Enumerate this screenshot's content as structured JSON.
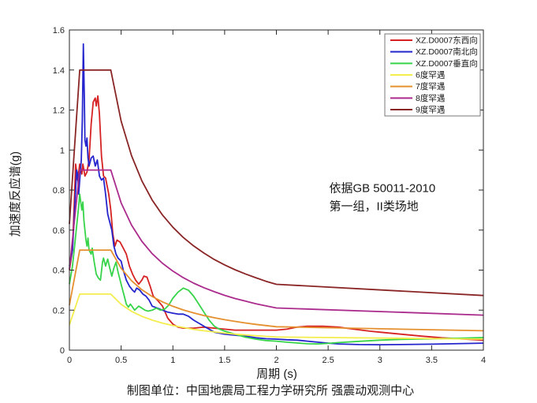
{
  "figure": {
    "background": "#ffffff",
    "axis_color": "#262626",
    "text_color": "#1a1a1a",
    "legend_border_color": "#777777"
  },
  "caption": "制图单位：中国地震局工程力学研究所 强震动观测中心",
  "chart_data": {
    "type": "line",
    "title": "",
    "xlabel": "周期 (s)",
    "ylabel": "加速度反应谱(g)",
    "xlim": [
      0,
      4
    ],
    "ylim": [
      0,
      1.6
    ],
    "grid": false,
    "legend_position": "top-right",
    "xtick_values": [
      0,
      0.5,
      1,
      1.5,
      2,
      2.5,
      3,
      3.5,
      4
    ],
    "xtick_labels": [
      "0",
      "0.5",
      "1",
      "1.5",
      "2",
      "2.5",
      "3",
      "3.5",
      "4"
    ],
    "ytick_values": [
      0,
      0.2,
      0.4,
      0.6,
      0.8,
      1,
      1.2,
      1.4,
      1.6
    ],
    "ytick_labels": [
      "0",
      "0.2",
      "0.4",
      "0.6",
      "0.8",
      "1",
      "1.2",
      "1.4",
      "1.6"
    ],
    "annotation": {
      "lines": [
        "依据GB 50011-2010",
        "第一组，II类场地"
      ],
      "x": 2.51,
      "y_lines": [
        0.79,
        0.7
      ]
    },
    "series": [
      {
        "id": "ew",
        "name": "XZ.D0007东西向",
        "color": "#d62222",
        "points": [
          [
            0,
            0.4
          ],
          [
            0.03,
            0.5
          ],
          [
            0.05,
            0.78
          ],
          [
            0.06,
            0.93
          ],
          [
            0.08,
            0.85
          ],
          [
            0.1,
            0.93
          ],
          [
            0.12,
            0.88
          ],
          [
            0.13,
            0.93
          ],
          [
            0.15,
            0.87
          ],
          [
            0.17,
            0.89
          ],
          [
            0.19,
            0.95
          ],
          [
            0.21,
            1.13
          ],
          [
            0.23,
            1.24
          ],
          [
            0.25,
            1.26
          ],
          [
            0.26,
            1.22
          ],
          [
            0.275,
            1.27
          ],
          [
            0.29,
            1.18
          ],
          [
            0.31,
            0.97
          ],
          [
            0.33,
            0.87
          ],
          [
            0.35,
            0.86
          ],
          [
            0.38,
            0.78
          ],
          [
            0.4,
            0.7
          ],
          [
            0.42,
            0.58
          ],
          [
            0.44,
            0.52
          ],
          [
            0.46,
            0.55
          ],
          [
            0.49,
            0.54
          ],
          [
            0.52,
            0.51
          ],
          [
            0.55,
            0.48
          ],
          [
            0.58,
            0.42
          ],
          [
            0.61,
            0.38
          ],
          [
            0.64,
            0.35
          ],
          [
            0.67,
            0.33
          ],
          [
            0.7,
            0.35
          ],
          [
            0.72,
            0.37
          ],
          [
            0.75,
            0.365
          ],
          [
            0.78,
            0.32
          ],
          [
            0.81,
            0.27
          ],
          [
            0.85,
            0.25
          ],
          [
            0.9,
            0.22
          ],
          [
            0.95,
            0.16
          ],
          [
            1.0,
            0.13
          ],
          [
            1.05,
            0.115
          ],
          [
            1.1,
            0.11
          ],
          [
            1.2,
            0.11
          ],
          [
            1.3,
            0.115
          ],
          [
            1.4,
            0.11
          ],
          [
            1.5,
            0.105
          ],
          [
            1.6,
            0.1
          ],
          [
            1.7,
            0.1
          ],
          [
            1.8,
            0.1
          ],
          [
            1.9,
            0.1
          ],
          [
            2.0,
            0.1
          ],
          [
            2.1,
            0.105
          ],
          [
            2.2,
            0.115
          ],
          [
            2.3,
            0.12
          ],
          [
            2.45,
            0.12
          ],
          [
            2.6,
            0.115
          ],
          [
            2.75,
            0.105
          ],
          [
            2.9,
            0.095
          ],
          [
            3.0,
            0.09
          ],
          [
            3.2,
            0.08
          ],
          [
            3.4,
            0.07
          ],
          [
            3.6,
            0.062
          ],
          [
            3.8,
            0.056
          ],
          [
            4.0,
            0.05
          ]
        ]
      },
      {
        "id": "ns",
        "name": "XZ.D0007南北向",
        "color": "#2525cd",
        "points": [
          [
            0,
            0.42
          ],
          [
            0.03,
            0.5
          ],
          [
            0.05,
            0.7
          ],
          [
            0.07,
            0.9
          ],
          [
            0.08,
            0.88
          ],
          [
            0.09,
            0.78
          ],
          [
            0.1,
            0.85
          ],
          [
            0.115,
            0.95
          ],
          [
            0.125,
            1.15
          ],
          [
            0.135,
            1.53
          ],
          [
            0.145,
            1.25
          ],
          [
            0.15,
            1.05
          ],
          [
            0.16,
            1.02
          ],
          [
            0.17,
            1.06
          ],
          [
            0.18,
            0.96
          ],
          [
            0.19,
            0.92
          ],
          [
            0.21,
            0.96
          ],
          [
            0.23,
            0.97
          ],
          [
            0.25,
            0.92
          ],
          [
            0.27,
            0.95
          ],
          [
            0.29,
            0.87
          ],
          [
            0.31,
            0.85
          ],
          [
            0.33,
            0.86
          ],
          [
            0.35,
            0.78
          ],
          [
            0.37,
            0.68
          ],
          [
            0.39,
            0.64
          ],
          [
            0.41,
            0.6
          ],
          [
            0.43,
            0.52
          ],
          [
            0.45,
            0.48
          ],
          [
            0.47,
            0.46
          ],
          [
            0.5,
            0.445
          ],
          [
            0.52,
            0.4
          ],
          [
            0.55,
            0.35
          ],
          [
            0.58,
            0.32
          ],
          [
            0.61,
            0.3
          ],
          [
            0.63,
            0.29
          ],
          [
            0.65,
            0.31
          ],
          [
            0.68,
            0.3
          ],
          [
            0.71,
            0.28
          ],
          [
            0.74,
            0.27
          ],
          [
            0.77,
            0.25
          ],
          [
            0.8,
            0.22
          ],
          [
            0.85,
            0.21
          ],
          [
            0.9,
            0.2
          ],
          [
            0.95,
            0.19
          ],
          [
            1.0,
            0.185
          ],
          [
            1.05,
            0.18
          ],
          [
            1.1,
            0.18
          ],
          [
            1.15,
            0.17
          ],
          [
            1.2,
            0.15
          ],
          [
            1.3,
            0.12
          ],
          [
            1.4,
            0.09
          ],
          [
            1.5,
            0.08
          ],
          [
            1.6,
            0.075
          ],
          [
            1.7,
            0.07
          ],
          [
            1.8,
            0.062
          ],
          [
            1.9,
            0.057
          ],
          [
            2.0,
            0.055
          ],
          [
            2.1,
            0.052
          ],
          [
            2.2,
            0.05
          ],
          [
            2.3,
            0.045
          ],
          [
            2.4,
            0.04
          ],
          [
            2.5,
            0.035
          ],
          [
            2.6,
            0.031
          ],
          [
            2.8,
            0.028
          ],
          [
            3.0,
            0.027
          ],
          [
            3.2,
            0.028
          ],
          [
            3.5,
            0.03
          ],
          [
            3.8,
            0.033
          ],
          [
            4.0,
            0.035
          ]
        ]
      },
      {
        "id": "ud",
        "name": "XZ.D0007垂直向",
        "color": "#37d44a",
        "points": [
          [
            0,
            0.33
          ],
          [
            0.03,
            0.42
          ],
          [
            0.05,
            0.52
          ],
          [
            0.07,
            0.62
          ],
          [
            0.09,
            0.72
          ],
          [
            0.1,
            0.78
          ],
          [
            0.11,
            0.74
          ],
          [
            0.12,
            0.7
          ],
          [
            0.13,
            0.74
          ],
          [
            0.14,
            0.65
          ],
          [
            0.15,
            0.6
          ],
          [
            0.16,
            0.55
          ],
          [
            0.17,
            0.52
          ],
          [
            0.18,
            0.56
          ],
          [
            0.19,
            0.5
          ],
          [
            0.21,
            0.48
          ],
          [
            0.22,
            0.51
          ],
          [
            0.24,
            0.44
          ],
          [
            0.26,
            0.38
          ],
          [
            0.28,
            0.36
          ],
          [
            0.3,
            0.35
          ],
          [
            0.32,
            0.44
          ],
          [
            0.33,
            0.46
          ],
          [
            0.35,
            0.42
          ],
          [
            0.37,
            0.455
          ],
          [
            0.39,
            0.41
          ],
          [
            0.41,
            0.37
          ],
          [
            0.43,
            0.41
          ],
          [
            0.45,
            0.44
          ],
          [
            0.47,
            0.39
          ],
          [
            0.49,
            0.35
          ],
          [
            0.51,
            0.31
          ],
          [
            0.53,
            0.27
          ],
          [
            0.55,
            0.23
          ],
          [
            0.57,
            0.215
          ],
          [
            0.59,
            0.23
          ],
          [
            0.61,
            0.215
          ],
          [
            0.63,
            0.2
          ],
          [
            0.65,
            0.21
          ],
          [
            0.67,
            0.22
          ],
          [
            0.7,
            0.21
          ],
          [
            0.73,
            0.2
          ],
          [
            0.76,
            0.195
          ],
          [
            0.8,
            0.2
          ],
          [
            0.84,
            0.21
          ],
          [
            0.88,
            0.2
          ],
          [
            0.92,
            0.205
          ],
          [
            0.96,
            0.225
          ],
          [
            1.0,
            0.26
          ],
          [
            1.05,
            0.29
          ],
          [
            1.1,
            0.31
          ],
          [
            1.15,
            0.3
          ],
          [
            1.2,
            0.27
          ],
          [
            1.25,
            0.23
          ],
          [
            1.3,
            0.19
          ],
          [
            1.35,
            0.15
          ],
          [
            1.4,
            0.12
          ],
          [
            1.45,
            0.105
          ],
          [
            1.5,
            0.095
          ],
          [
            1.6,
            0.08
          ],
          [
            1.7,
            0.065
          ],
          [
            1.8,
            0.055
          ],
          [
            1.9,
            0.048
          ],
          [
            2.0,
            0.045
          ],
          [
            2.1,
            0.04
          ],
          [
            2.2,
            0.036
          ],
          [
            2.3,
            0.032
          ],
          [
            2.4,
            0.031
          ],
          [
            2.5,
            0.034
          ],
          [
            2.6,
            0.038
          ],
          [
            2.8,
            0.044
          ],
          [
            3.0,
            0.05
          ],
          [
            3.2,
            0.054
          ],
          [
            3.4,
            0.056
          ],
          [
            3.6,
            0.058
          ],
          [
            3.8,
            0.06
          ],
          [
            4.0,
            0.063
          ]
        ]
      },
      {
        "id": "rare6",
        "name": "6度罕遇",
        "color": "#f3ed4e",
        "points": [
          [
            0,
            0.126
          ],
          [
            0.1,
            0.28
          ],
          [
            0.4,
            0.28
          ],
          [
            0.5,
            0.229
          ],
          [
            0.6,
            0.194
          ],
          [
            0.7,
            0.169
          ],
          [
            0.8,
            0.15
          ],
          [
            0.9,
            0.135
          ],
          [
            1.0,
            0.123
          ],
          [
            1.1,
            0.113
          ],
          [
            1.2,
            0.104
          ],
          [
            1.3,
            0.097
          ],
          [
            1.4,
            0.091
          ],
          [
            1.5,
            0.085
          ],
          [
            1.6,
            0.08
          ],
          [
            1.7,
            0.076
          ],
          [
            1.8,
            0.072
          ],
          [
            1.9,
            0.069
          ],
          [
            2.0,
            0.066
          ],
          [
            4.0,
            0.055
          ]
        ]
      },
      {
        "id": "rare7",
        "name": "7度罕遇",
        "color": "#e5902f",
        "points": [
          [
            0,
            0.225
          ],
          [
            0.1,
            0.5
          ],
          [
            0.4,
            0.5
          ],
          [
            0.5,
            0.409
          ],
          [
            0.6,
            0.347
          ],
          [
            0.7,
            0.302
          ],
          [
            0.8,
            0.268
          ],
          [
            0.9,
            0.241
          ],
          [
            1.0,
            0.219
          ],
          [
            1.1,
            0.201
          ],
          [
            1.2,
            0.186
          ],
          [
            1.3,
            0.173
          ],
          [
            1.4,
            0.162
          ],
          [
            1.5,
            0.152
          ],
          [
            1.6,
            0.144
          ],
          [
            1.7,
            0.136
          ],
          [
            1.8,
            0.129
          ],
          [
            1.9,
            0.123
          ],
          [
            2.0,
            0.117
          ],
          [
            4.0,
            0.097
          ]
        ]
      },
      {
        "id": "rare8",
        "name": "8度罕遇",
        "color": "#ab2b8d",
        "points": [
          [
            0,
            0.405
          ],
          [
            0.1,
            0.9
          ],
          [
            0.4,
            0.9
          ],
          [
            0.5,
            0.736
          ],
          [
            0.6,
            0.625
          ],
          [
            0.7,
            0.544
          ],
          [
            0.8,
            0.482
          ],
          [
            0.9,
            0.434
          ],
          [
            1.0,
            0.395
          ],
          [
            1.1,
            0.362
          ],
          [
            1.2,
            0.335
          ],
          [
            1.3,
            0.312
          ],
          [
            1.4,
            0.292
          ],
          [
            1.5,
            0.274
          ],
          [
            1.6,
            0.258
          ],
          [
            1.7,
            0.245
          ],
          [
            1.8,
            0.232
          ],
          [
            1.9,
            0.221
          ],
          [
            2.0,
            0.211
          ],
          [
            4.0,
            0.175
          ]
        ]
      },
      {
        "id": "rare9",
        "name": "9度罕遇",
        "color": "#8a2525",
        "points": [
          [
            0,
            0.63
          ],
          [
            0.1,
            1.4
          ],
          [
            0.4,
            1.4
          ],
          [
            0.5,
            1.145
          ],
          [
            0.6,
            0.972
          ],
          [
            0.7,
            0.846
          ],
          [
            0.8,
            0.75
          ],
          [
            0.9,
            0.675
          ],
          [
            1.0,
            0.614
          ],
          [
            1.1,
            0.563
          ],
          [
            1.2,
            0.521
          ],
          [
            1.3,
            0.485
          ],
          [
            1.4,
            0.453
          ],
          [
            1.5,
            0.426
          ],
          [
            1.6,
            0.402
          ],
          [
            1.7,
            0.381
          ],
          [
            1.8,
            0.362
          ],
          [
            1.9,
            0.344
          ],
          [
            2.0,
            0.329
          ],
          [
            4.0,
            0.273
          ]
        ]
      }
    ]
  }
}
